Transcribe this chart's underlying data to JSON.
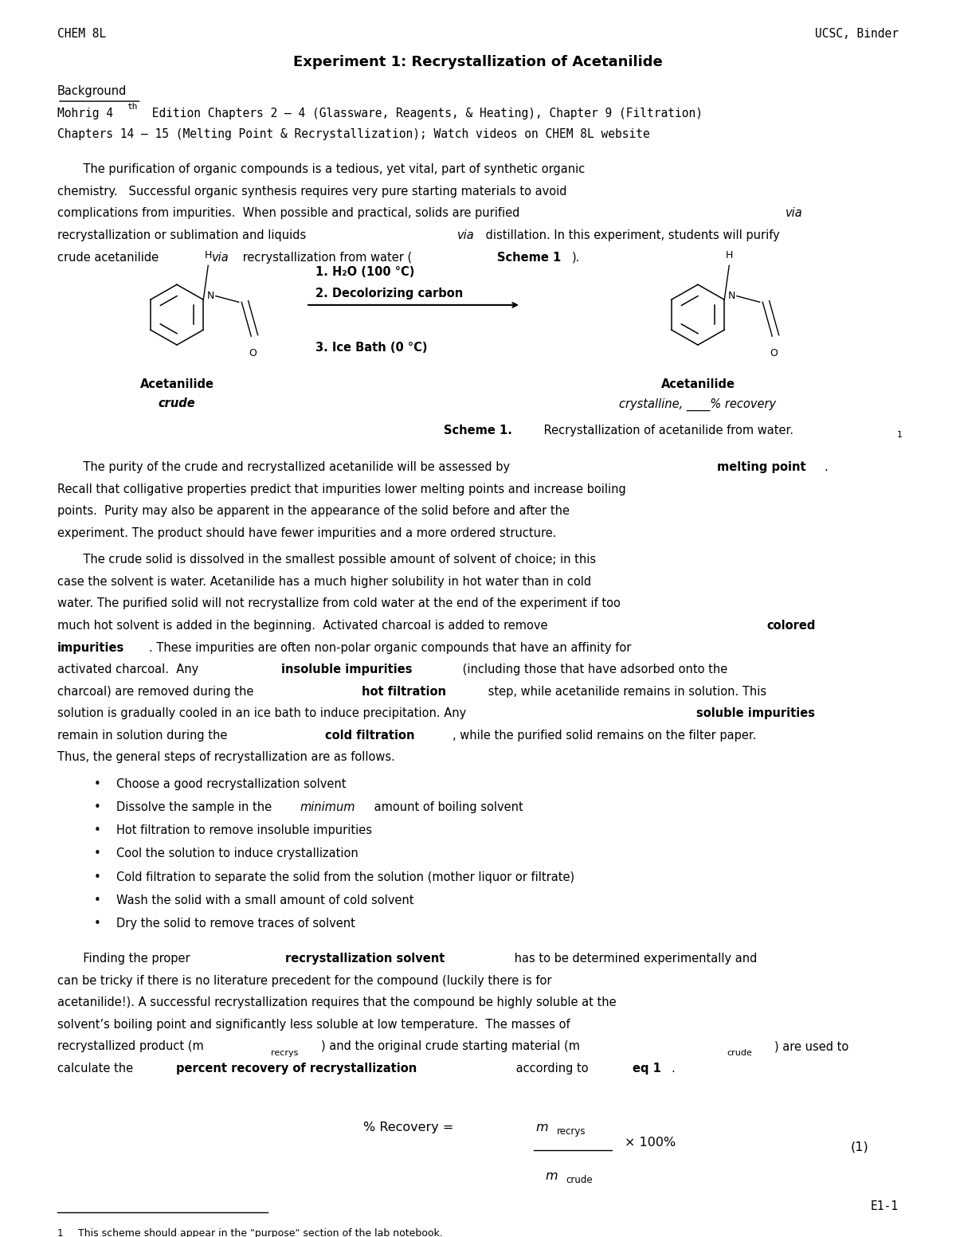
{
  "page_width": 12.0,
  "page_height": 15.53,
  "dpi": 100,
  "bg_color": "#ffffff",
  "left_header": "CHEM 8L",
  "right_header": "UCSC, Binder",
  "page_number": "E1-1",
  "title": "Experiment 1: Recrystallization of Acetanilide",
  "section_background": "Background",
  "reference_line1": "Mohrig 4th Edition Chapters 2 – 4 (Glassware, Reagents, & Heating), Chapter 9 (Filtration)",
  "reference_line2": "Chapters 14 – 15 (Melting Point & Recrystallization); Watch videos on CHEM 8L website",
  "bullets": [
    "Choose a good recrystallization solvent",
    "Dissolve the sample in the minimum amount of boiling solvent",
    "Hot filtration to remove insoluble impurities",
    "Cool the solution to induce crystallization",
    "Cold filtration to separate the solid from the solution (mother liquor or filtrate)",
    "Wash the solid with a small amount of cold solvent",
    "Dry the solid to remove traces of solvent"
  ],
  "footnote": "This scheme should appear in the \"purpose\" section of the lab notebook.",
  "text_color": "#000000"
}
